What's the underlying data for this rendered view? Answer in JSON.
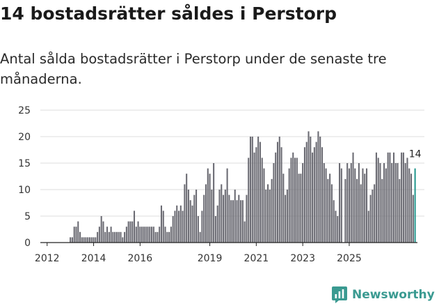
{
  "header": {
    "title": "14 bostadsrätter såldes i Perstorp",
    "subtitle": "Antal sålda bostadsrätter i Perstorp under de senaste tre månaderna."
  },
  "brand": {
    "name": "Newsworthy"
  },
  "colors": {
    "bar": "#6b6b73",
    "highlight": "#26978f",
    "grid": "#dddddd",
    "brand": "#3a9a91"
  },
  "chart_data": {
    "type": "bar",
    "title": "14 bostadsrätter såldes i Perstorp",
    "xlabel": "",
    "ylabel": "",
    "ylim": [
      0,
      25
    ],
    "y_ticks": [
      0,
      5,
      10,
      15,
      20,
      25
    ],
    "x_tick_labels": [
      "2012",
      "2014",
      "2016",
      "2019",
      "2021",
      "2023",
      "2025"
    ],
    "x_tick_month_index": [
      3,
      27,
      51,
      87,
      111,
      135,
      159
    ],
    "start_period": "2011-09",
    "highlight_label": "14",
    "values": [
      0,
      0,
      0,
      0,
      0,
      0,
      0,
      0,
      0,
      0,
      0,
      0,
      0,
      0,
      0,
      1,
      1,
      3,
      3,
      4,
      2,
      1,
      1,
      1,
      1,
      1,
      1,
      1,
      1,
      2,
      3,
      5,
      4,
      2,
      3,
      2,
      3,
      2,
      2,
      2,
      2,
      2,
      1,
      2,
      3,
      4,
      4,
      4,
      6,
      3,
      4,
      3,
      3,
      3,
      3,
      3,
      3,
      3,
      3,
      2,
      2,
      3,
      7,
      6,
      3,
      2,
      2,
      3,
      5,
      6,
      7,
      6,
      7,
      6,
      11,
      13,
      10,
      8,
      7,
      9,
      10,
      5,
      2,
      6,
      9,
      11,
      14,
      13,
      10,
      15,
      5,
      7,
      10,
      11,
      9,
      10,
      14,
      9,
      8,
      8,
      10,
      8,
      9,
      8,
      8,
      4,
      9,
      16,
      20,
      20,
      17,
      18,
      20,
      19,
      16,
      14,
      10,
      11,
      10,
      12,
      15,
      17,
      19,
      20,
      18,
      13,
      9,
      10,
      14,
      16,
      17,
      16,
      16,
      13,
      13,
      15,
      18,
      19,
      21,
      20,
      17,
      18,
      19,
      21,
      20,
      18,
      15,
      14,
      12,
      13,
      11,
      8,
      6,
      5,
      15,
      14,
      0,
      12,
      15,
      14,
      15,
      17,
      14,
      12,
      15,
      11,
      14,
      13,
      14,
      6,
      9,
      10,
      11,
      17,
      16,
      15,
      12,
      15,
      14,
      17,
      17,
      15,
      17,
      15,
      15,
      12,
      17,
      17,
      15,
      16,
      14,
      13,
      9,
      14
    ],
    "last_value": 14
  }
}
